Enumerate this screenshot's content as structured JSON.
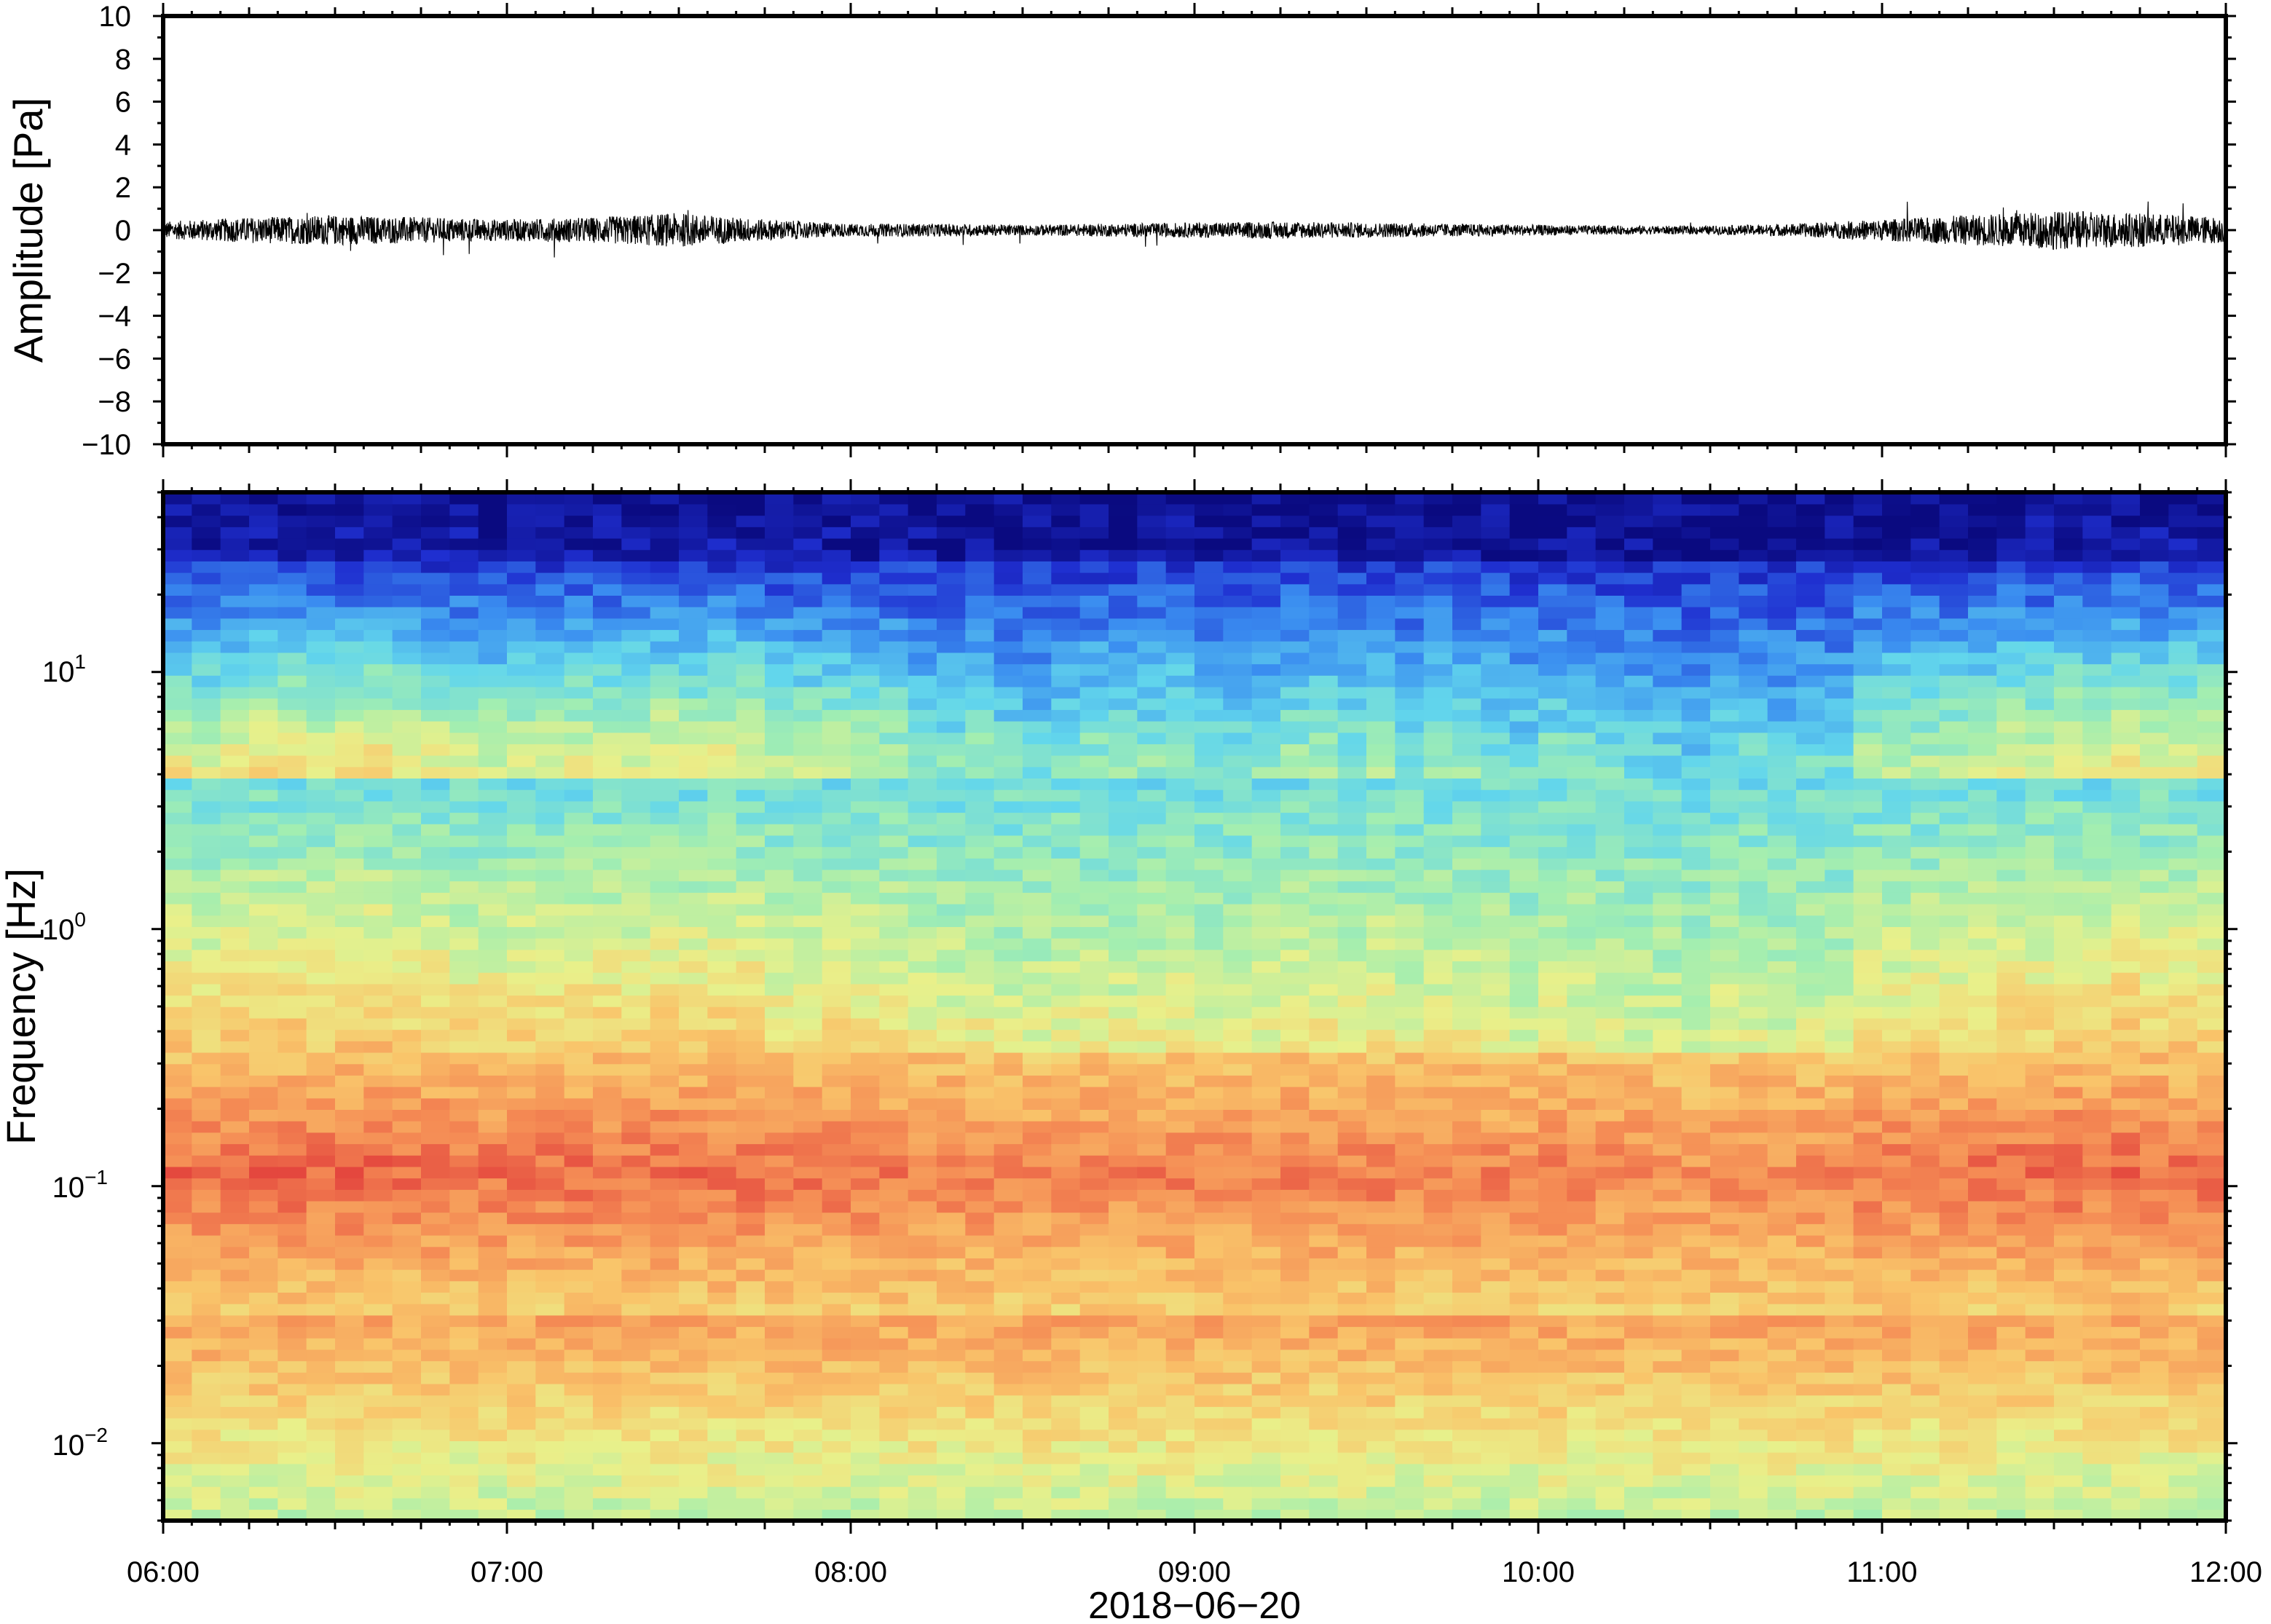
{
  "chart_data": [
    {
      "type": "line",
      "ylabel": "Amplitude [Pa]",
      "ylim": [
        -10,
        10
      ],
      "y_ticks": [
        10,
        8,
        6,
        4,
        2,
        0,
        -2,
        -4,
        -6,
        -8,
        -10
      ],
      "y_tick_labels": [
        "10",
        "8",
        "6",
        "4",
        "2",
        "0",
        "−2",
        "−4",
        "−6",
        "−8",
        "−10"
      ],
      "xlim": [
        "06:00",
        "12:00"
      ],
      "series": [
        {
          "color": "#000000",
          "x": [
            "06:00",
            "06:15",
            "06:30",
            "06:45",
            "07:00",
            "07:15",
            "07:30",
            "07:45",
            "08:00",
            "08:15",
            "08:30",
            "08:45",
            "09:00",
            "09:15",
            "09:30",
            "09:45",
            "10:00",
            "10:15",
            "10:30",
            "10:45",
            "11:00",
            "11:15",
            "11:30",
            "11:45",
            "12:00"
          ],
          "envelope": [
            0.4,
            0.6,
            0.7,
            0.6,
            0.5,
            0.6,
            0.8,
            0.5,
            0.3,
            0.3,
            0.25,
            0.3,
            0.35,
            0.4,
            0.35,
            0.3,
            0.25,
            0.2,
            0.2,
            0.3,
            0.5,
            0.7,
            0.9,
            0.8,
            0.6
          ]
        }
      ]
    },
    {
      "type": "heatmap",
      "ylabel": "Frequency [Hz]",
      "xlabel": "2018−06−20",
      "y_scale": "log",
      "ylim": [
        0.005,
        50
      ],
      "y_ticks": [
        0.01,
        0.1,
        1,
        10
      ],
      "y_tick_labels": [
        {
          "base": "10",
          "exp": "−2"
        },
        {
          "base": "10",
          "exp": "−1"
        },
        {
          "base": "10",
          "exp": "0"
        },
        {
          "base": "10",
          "exp": "1"
        }
      ],
      "x_ticks": [
        "06:00",
        "07:00",
        "08:00",
        "09:00",
        "10:00",
        "11:00",
        "12:00"
      ],
      "colormap": [
        "#0a0a80",
        "#1f2fd0",
        "#3a8df0",
        "#62d6ec",
        "#a3eeb0",
        "#e9f08a",
        "#f9c46a",
        "#f58d55",
        "#e4473e"
      ],
      "frame_color": "#000000"
    }
  ]
}
